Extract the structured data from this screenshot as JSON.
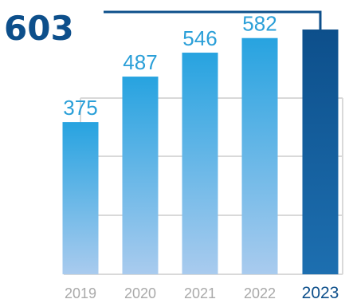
{
  "chart_data": {
    "type": "bar",
    "categories": [
      "2019",
      "2020",
      "2021",
      "2022",
      "2023"
    ],
    "values": [
      375,
      487,
      546,
      582,
      603
    ],
    "ylim": [
      0,
      660
    ],
    "highlight_index": 4,
    "grid": true,
    "colors": {
      "bar_top": "#27a3e0",
      "bar_bottom": "#a9cbee",
      "highlight_top": "#0d4f8b",
      "highlight_bottom": "#1d6fb0",
      "value_label": "#2a9fd8",
      "tick_label": "#a9a9a9",
      "highlight_label": "#0d4f8b",
      "gridline": "#d9d9d9"
    }
  }
}
